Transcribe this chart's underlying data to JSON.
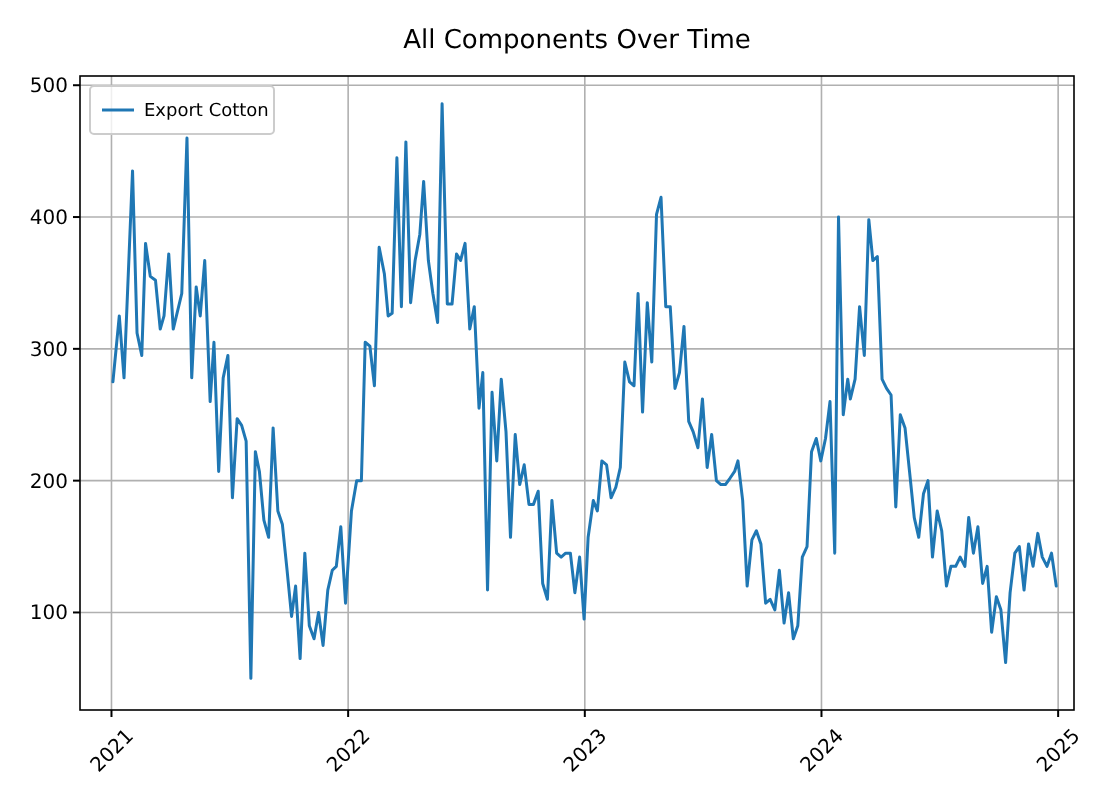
{
  "chart_data": {
    "type": "line",
    "title": "All Components Over Time",
    "xlim": [
      2020.867,
      2025.067
    ],
    "xticks": [
      2021,
      2022,
      2023,
      2024,
      2025
    ],
    "ylim": [
      26,
      507
    ],
    "yticks": [
      100,
      200,
      300,
      400,
      500
    ],
    "grid": true,
    "legend": "top left",
    "line_style": "solid",
    "series": [
      {
        "name": "Export Cotton",
        "color": "#1f77b4",
        "x": [
          2021.006,
          2021.033,
          2021.053,
          2021.089,
          2021.108,
          2021.128,
          2021.144,
          2021.164,
          2021.186,
          2021.206,
          2021.222,
          2021.242,
          2021.261,
          2021.297,
          2021.319,
          2021.339,
          2021.358,
          2021.375,
          2021.394,
          2021.417,
          2021.433,
          2021.453,
          2021.472,
          2021.492,
          2021.511,
          2021.531,
          2021.55,
          2021.569,
          2021.589,
          2021.608,
          2021.625,
          2021.644,
          2021.664,
          2021.683,
          2021.703,
          2021.722,
          2021.742,
          2021.761,
          2021.778,
          2021.797,
          2021.817,
          2021.836,
          2021.856,
          2021.875,
          2021.894,
          2021.914,
          2021.933,
          2021.95,
          2021.969,
          2021.989,
          2022.014,
          2022.036,
          2022.056,
          2022.072,
          2022.092,
          2022.111,
          2022.131,
          2022.153,
          2022.169,
          2022.186,
          2022.206,
          2022.225,
          2022.244,
          2022.264,
          2022.283,
          2022.303,
          2022.319,
          2022.339,
          2022.358,
          2022.378,
          2022.397,
          2022.419,
          2022.439,
          2022.458,
          2022.475,
          2022.494,
          2022.514,
          2022.533,
          2022.553,
          2022.569,
          2022.589,
          2022.608,
          2022.628,
          2022.647,
          2022.667,
          2022.686,
          2022.706,
          2022.725,
          2022.744,
          2022.764,
          2022.783,
          2022.803,
          2022.822,
          2022.842,
          2022.861,
          2022.881,
          2022.9,
          2022.919,
          2022.939,
          2022.958,
          2022.978,
          2022.997,
          2023.014,
          2023.036,
          2023.053,
          2023.072,
          2023.092,
          2023.111,
          2023.131,
          2023.15,
          2023.169,
          2023.189,
          2023.208,
          2023.225,
          2023.244,
          2023.264,
          2023.283,
          2023.303,
          2023.322,
          2023.342,
          2023.361,
          2023.381,
          2023.4,
          2023.419,
          2023.439,
          2023.458,
          2023.478,
          2023.497,
          2023.517,
          2023.536,
          2023.556,
          2023.575,
          2023.594,
          2023.614,
          2023.633,
          2023.647,
          2023.667,
          2023.686,
          2023.706,
          2023.725,
          2023.744,
          2023.764,
          2023.783,
          2023.803,
          2023.822,
          2023.842,
          2023.861,
          2023.881,
          2023.9,
          2023.919,
          2023.939,
          2023.958,
          2023.978,
          2023.997,
          2024.017,
          2024.036,
          2024.056,
          2024.072,
          2024.092,
          2024.111,
          2024.122,
          2024.142,
          2024.161,
          2024.181,
          2024.2,
          2024.217,
          2024.236,
          2024.256,
          2024.275,
          2024.294,
          2024.314,
          2024.333,
          2024.353,
          2024.372,
          2024.392,
          2024.411,
          2024.431,
          2024.45,
          2024.469,
          2024.489,
          2024.508,
          2024.528,
          2024.547,
          2024.567,
          2024.586,
          2024.606,
          2024.622,
          2024.642,
          2024.661,
          2024.681,
          2024.7,
          2024.719,
          2024.739,
          2024.758,
          2024.778,
          2024.797,
          2024.817,
          2024.836,
          2024.856,
          2024.875,
          2024.894,
          2024.914,
          2024.933,
          2024.953,
          2024.972,
          2024.992
        ],
        "values": [
          275,
          325,
          278,
          435,
          312,
          295,
          380,
          355,
          352,
          315,
          325,
          372,
          315,
          342,
          460,
          278,
          347,
          325,
          367,
          260,
          305,
          207,
          278,
          295,
          187,
          247,
          242,
          230,
          50,
          222,
          207,
          170,
          157,
          240,
          177,
          167,
          132,
          97,
          120,
          65,
          145,
          90,
          80,
          100,
          75,
          117,
          132,
          135,
          165,
          107,
          177,
          200,
          200,
          305,
          302,
          272,
          377,
          357,
          325,
          327,
          445,
          332,
          457,
          335,
          367,
          387,
          427,
          367,
          342,
          320,
          486,
          334,
          334,
          372,
          367,
          380,
          315,
          332,
          255,
          282,
          117,
          267,
          215,
          277,
          237,
          157,
          235,
          197,
          212,
          182,
          182,
          192,
          122,
          110,
          185,
          145,
          142,
          145,
          145,
          115,
          142,
          95,
          157,
          185,
          177,
          215,
          212,
          187,
          195,
          210,
          290,
          275,
          272,
          342,
          252,
          335,
          290,
          402,
          415,
          332,
          332,
          270,
          282,
          317,
          245,
          237,
          225,
          262,
          210,
          235,
          200,
          197,
          197,
          202,
          207,
          215,
          185,
          120,
          155,
          162,
          152,
          107,
          110,
          102,
          132,
          92,
          115,
          80,
          90,
          142,
          150,
          222,
          232,
          215,
          232,
          260,
          145,
          400,
          250,
          277,
          262,
          277,
          332,
          295,
          398,
          367,
          370,
          277,
          270,
          265,
          180,
          250,
          240,
          207,
          172,
          157,
          190,
          200,
          142,
          177,
          162,
          120,
          135,
          135,
          142,
          135,
          172,
          145,
          165,
          122,
          135,
          85,
          112,
          102,
          62,
          115,
          145,
          150,
          117,
          152,
          135,
          160,
          142,
          135,
          145,
          120
        ]
      }
    ]
  }
}
